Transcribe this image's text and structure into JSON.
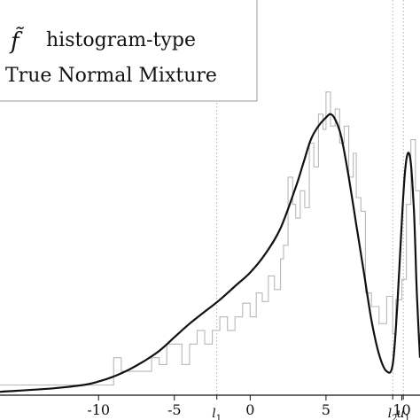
{
  "chart_data": {
    "type": "line",
    "title": "",
    "xlabel": "",
    "ylabel": "",
    "xlim": [
      -16.5,
      11.2
    ],
    "ylim": [
      0,
      0.232
    ],
    "grid": false,
    "legend_position": "top-left",
    "legend": {
      "entries": [
        {
          "symbol": "f̃",
          "label": "histogram-type",
          "style": "thin-gray-line"
        },
        {
          "symbol": "",
          "label": "True Normal Mixture",
          "style": "thick-black-line"
        }
      ]
    },
    "x_ticks": [
      {
        "value": -10,
        "label": "-10"
      },
      {
        "value": -5,
        "label": "-5"
      },
      {
        "value": 0,
        "label": "0"
      },
      {
        "value": 5,
        "label": "5"
      },
      {
        "value": 10,
        "label": "10"
      }
    ],
    "markers": [
      {
        "name": "l",
        "sub": "1",
        "x": -2.2
      },
      {
        "name": "l",
        "sub": "2",
        "x": 9.4
      },
      {
        "name": "u",
        "sub": "1",
        "x": 10.1
      }
    ],
    "series": [
      {
        "name": "histogram-type",
        "color": "#b8b8b8",
        "x": [
          -16.5,
          -10,
          -9,
          -8.5,
          -7.5,
          -6.5,
          -6,
          -5.5,
          -4.8,
          -4.5,
          -4,
          -3.5,
          -3,
          -2.5,
          -2,
          -1.5,
          -1,
          -0.5,
          0,
          0.4,
          0.8,
          1.2,
          1.6,
          2,
          2.2,
          2.5,
          2.8,
          3,
          3.3,
          3.6,
          3.9,
          4.2,
          4.5,
          4.8,
          5,
          5.3,
          5.6,
          5.9,
          6.2,
          6.5,
          6.8,
          7,
          7.3,
          7.6,
          8,
          8.5,
          9,
          9.4,
          9.6,
          10,
          10.3,
          10.6,
          10.9,
          11.2
        ],
        "y": [
          0.006,
          0.006,
          0.022,
          0.014,
          0.014,
          0.022,
          0.018,
          0.03,
          0.03,
          0.018,
          0.03,
          0.038,
          0.03,
          0.038,
          0.046,
          0.038,
          0.046,
          0.054,
          0.046,
          0.06,
          0.055,
          0.07,
          0.062,
          0.08,
          0.088,
          0.128,
          0.112,
          0.104,
          0.12,
          0.11,
          0.148,
          0.134,
          0.165,
          0.156,
          0.178,
          0.158,
          0.168,
          0.148,
          0.158,
          0.128,
          0.142,
          0.116,
          0.108,
          0.06,
          0.052,
          0.042,
          0.058,
          0.036,
          0.056,
          0.068,
          0.112,
          0.15,
          0.12,
          0.1
        ]
      },
      {
        "name": "True Normal Mixture",
        "color": "#111111",
        "x": [
          -16.5,
          -13,
          -11,
          -10,
          -9,
          -8,
          -7,
          -6,
          -5,
          -4,
          -3,
          -2,
          -1,
          0,
          1,
          2,
          3,
          3.5,
          4,
          4.5,
          5,
          5.3,
          5.6,
          6,
          6.5,
          7,
          7.5,
          8,
          8.5,
          9,
          9.4,
          9.7,
          10,
          10.2,
          10.4,
          10.6,
          10.8,
          10.9,
          11,
          11.2
        ],
        "y": [
          0.002,
          0.004,
          0.006,
          0.008,
          0.011,
          0.015,
          0.02,
          0.026,
          0.034,
          0.042,
          0.049,
          0.056,
          0.064,
          0.072,
          0.083,
          0.098,
          0.122,
          0.136,
          0.15,
          0.158,
          0.163,
          0.165,
          0.162,
          0.152,
          0.128,
          0.1,
          0.072,
          0.044,
          0.024,
          0.014,
          0.018,
          0.052,
          0.102,
          0.13,
          0.142,
          0.136,
          0.108,
          0.084,
          0.058,
          0.022
        ]
      }
    ]
  }
}
